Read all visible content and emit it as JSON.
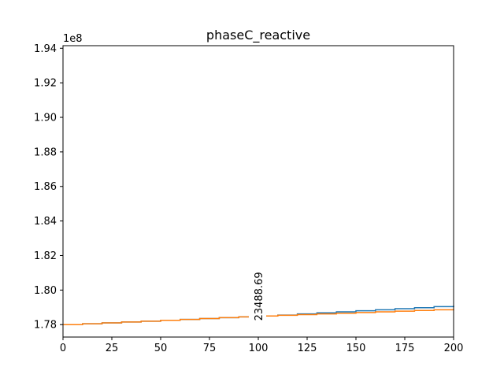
{
  "chart_data": {
    "type": "line",
    "title": "phaseC_reactive",
    "xlabel": "",
    "ylabel": "",
    "xlim": [
      0,
      200
    ],
    "ylim": [
      177280000.0,
      194150000.0
    ],
    "y_offset_label": "1e8",
    "x_ticks": [
      0,
      25,
      50,
      75,
      100,
      125,
      150,
      175,
      200
    ],
    "x_tick_labels": [
      "0",
      "25",
      "50",
      "75",
      "100",
      "125",
      "150",
      "175",
      "200"
    ],
    "y_ticks": [
      1.78,
      1.8,
      1.82,
      1.84,
      1.86,
      1.88,
      1.9,
      1.92,
      1.94
    ],
    "y_tick_labels": [
      "1.78",
      "1.80",
      "1.82",
      "1.84",
      "1.86",
      "1.88",
      "1.90",
      "1.92",
      "1.94"
    ],
    "grid": false,
    "legend": "none",
    "series": [
      {
        "color": "#1f77b4",
        "x": [
          0,
          10,
          20,
          30,
          40,
          50,
          60,
          70,
          80,
          90,
          100,
          110,
          120,
          130,
          140,
          150,
          160,
          170,
          180,
          190,
          200
        ],
        "y": [
          178000000.0,
          178050000.0,
          178100000.0,
          178150000.0,
          178200000.0,
          178250000.0,
          178300000.0,
          178350000.0,
          178400000.0,
          178450000.0,
          178500000.0,
          178550000.0,
          178620000.0,
          178680000.0,
          178740000.0,
          178800000.0,
          178860000.0,
          178920000.0,
          178980000.0,
          179040000.0,
          179100000.0
        ]
      },
      {
        "color": "#ff7f0e",
        "x": [
          0,
          10,
          20,
          30,
          40,
          50,
          60,
          70,
          80,
          90,
          100,
          110,
          120,
          130,
          140,
          150,
          160,
          170,
          180,
          190,
          200
        ],
        "y": [
          178000000.0,
          178050000.0,
          178100000.0,
          178150000.0,
          178200000.0,
          178250000.0,
          178300000.0,
          178350000.0,
          178400000.0,
          178450000.0,
          178500000.0,
          178540000.0,
          178580000.0,
          178620000.0,
          178660000.0,
          178700000.0,
          178740000.0,
          178780000.0,
          178820000.0,
          178860000.0,
          178900000.0
        ]
      }
    ],
    "annotations": [
      {
        "text": "23488.69",
        "x": 100,
        "y": 178400000.0,
        "rotation": -90
      }
    ]
  }
}
